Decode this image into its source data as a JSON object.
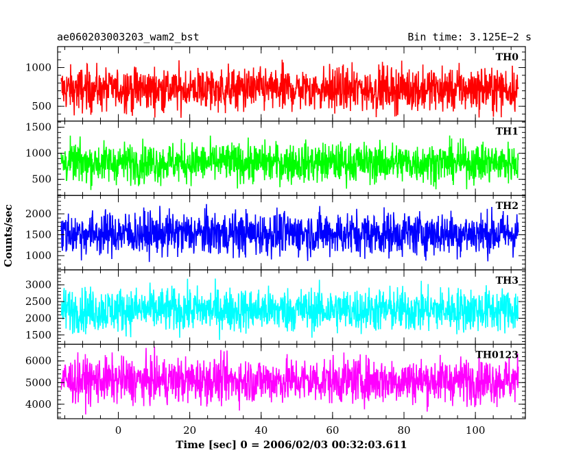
{
  "chart_data": {
    "type": "line",
    "title_left": "ae060203003203_wam2_bst",
    "title_right": "Bin time: 3.125E−2 s",
    "xlabel": "Time [sec] 0 = 2006/02/03 00:32:03.611",
    "ylabel": "Counts/sec",
    "xlim": [
      -17,
      114
    ],
    "x_start": -16,
    "x_end": 112,
    "x_ticks": [
      0,
      20,
      40,
      60,
      80,
      100
    ],
    "x_tick_labels": [
      "0",
      "20",
      "40",
      "60",
      "80",
      "100"
    ],
    "grid": false,
    "panels": [
      {
        "name": "TH0",
        "color": "#ff0000",
        "ylim": [
          310,
          1270
        ],
        "yticks": [
          500,
          1000
        ],
        "ytick_labels": [
          "500",
          "1000"
        ],
        "mean": 720,
        "spread": 140,
        "low": 350,
        "high": 1270
      },
      {
        "name": "TH1",
        "color": "#00ff00",
        "ylim": [
          190,
          1620
        ],
        "yticks": [
          500,
          1000,
          1500
        ],
        "ytick_labels": [
          "500",
          "1000",
          "1500"
        ],
        "mean": 820,
        "spread": 190,
        "low": 280,
        "high": 1520
      },
      {
        "name": "TH2",
        "color": "#0000ff",
        "ylim": [
          660,
          2440
        ],
        "yticks": [
          1000,
          1500,
          2000
        ],
        "ytick_labels": [
          "1000",
          "1500",
          "2000"
        ],
        "mean": 1530,
        "spread": 260,
        "low": 760,
        "high": 2400
      },
      {
        "name": "TH3",
        "color": "#00ffff",
        "ylim": [
          1220,
          3450
        ],
        "yticks": [
          1500,
          2000,
          2500,
          3000
        ],
        "ytick_labels": [
          "1500",
          "2000",
          "2500",
          "3000"
        ],
        "mean": 2250,
        "spread": 330,
        "low": 1330,
        "high": 3380
      },
      {
        "name": "TH0123",
        "color": "#ff00ff",
        "ylim": [
          3330,
          6770
        ],
        "yticks": [
          4000,
          5000,
          6000
        ],
        "ytick_labels": [
          "4000",
          "5000",
          "6000"
        ],
        "mean": 5100,
        "spread": 520,
        "low": 3400,
        "high": 6750
      }
    ]
  }
}
